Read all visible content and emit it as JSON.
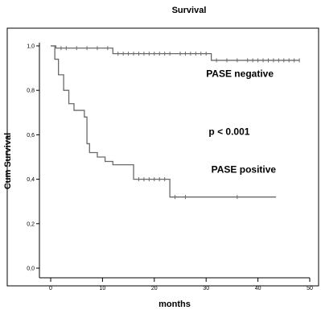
{
  "chart_data": {
    "type": "line",
    "title": "Survival",
    "xlabel": "months",
    "ylabel": "Cum Survival",
    "xlim": [
      0,
      50
    ],
    "ylim": [
      0,
      1.0
    ],
    "x_ticks": [
      0,
      10,
      20,
      30,
      40,
      50
    ],
    "x_tick_labels": [
      "0",
      "10",
      "20",
      "30",
      "40",
      "50"
    ],
    "y_ticks": [
      0,
      0.2,
      0.4,
      0.6,
      0.8,
      1.0
    ],
    "y_tick_labels": [
      "0,0",
      "0,2",
      "0,4",
      "0,6",
      "0,8",
      "1,0"
    ],
    "grid": false,
    "series": [
      {
        "name": "PASE negative",
        "color": "#6a6a6a",
        "steps": [
          [
            0,
            1.0
          ],
          [
            1,
            0.99
          ],
          [
            12,
            0.965
          ],
          [
            31,
            0.935
          ],
          [
            48,
            0.935
          ]
        ],
        "censored": [
          [
            2,
            0.99
          ],
          [
            3,
            0.99
          ],
          [
            5,
            0.99
          ],
          [
            7,
            0.99
          ],
          [
            9,
            0.99
          ],
          [
            11,
            0.99
          ],
          [
            13,
            0.965
          ],
          [
            14,
            0.965
          ],
          [
            15,
            0.965
          ],
          [
            16,
            0.965
          ],
          [
            17,
            0.965
          ],
          [
            18,
            0.965
          ],
          [
            19,
            0.965
          ],
          [
            20,
            0.965
          ],
          [
            21,
            0.965
          ],
          [
            22,
            0.965
          ],
          [
            23,
            0.965
          ],
          [
            25,
            0.965
          ],
          [
            26,
            0.965
          ],
          [
            27,
            0.965
          ],
          [
            28,
            0.965
          ],
          [
            29,
            0.965
          ],
          [
            30,
            0.965
          ],
          [
            32,
            0.935
          ],
          [
            34,
            0.935
          ],
          [
            36,
            0.935
          ],
          [
            38,
            0.935
          ],
          [
            39,
            0.935
          ],
          [
            40,
            0.935
          ],
          [
            41,
            0.935
          ],
          [
            42,
            0.935
          ],
          [
            43,
            0.935
          ],
          [
            44,
            0.935
          ],
          [
            45,
            0.935
          ],
          [
            46,
            0.935
          ],
          [
            47,
            0.935
          ],
          [
            48,
            0.935
          ]
        ]
      },
      {
        "name": "PASE positive",
        "color": "#6a6a6a",
        "steps": [
          [
            0,
            1.0
          ],
          [
            0.8,
            0.94
          ],
          [
            1.5,
            0.87
          ],
          [
            2.5,
            0.8
          ],
          [
            3.5,
            0.74
          ],
          [
            4.5,
            0.71
          ],
          [
            6.5,
            0.68
          ],
          [
            7,
            0.56
          ],
          [
            7.5,
            0.52
          ],
          [
            9,
            0.5
          ],
          [
            10.5,
            0.48
          ],
          [
            12,
            0.465
          ],
          [
            16,
            0.4
          ],
          [
            23,
            0.32
          ],
          [
            43.5,
            0.32
          ]
        ],
        "censored": [
          [
            17,
            0.4
          ],
          [
            18,
            0.4
          ],
          [
            19,
            0.4
          ],
          [
            20,
            0.4
          ],
          [
            21,
            0.4
          ],
          [
            22,
            0.4
          ],
          [
            24,
            0.32
          ],
          [
            26,
            0.32
          ],
          [
            36,
            0.32
          ]
        ]
      }
    ],
    "annotations": [
      {
        "text": "PASE negative",
        "x": 30,
        "y": 0.86
      },
      {
        "text": "p < 0.001",
        "x": 30.5,
        "y": 0.6
      },
      {
        "text": "PASE positive",
        "x": 31,
        "y": 0.43
      }
    ]
  }
}
